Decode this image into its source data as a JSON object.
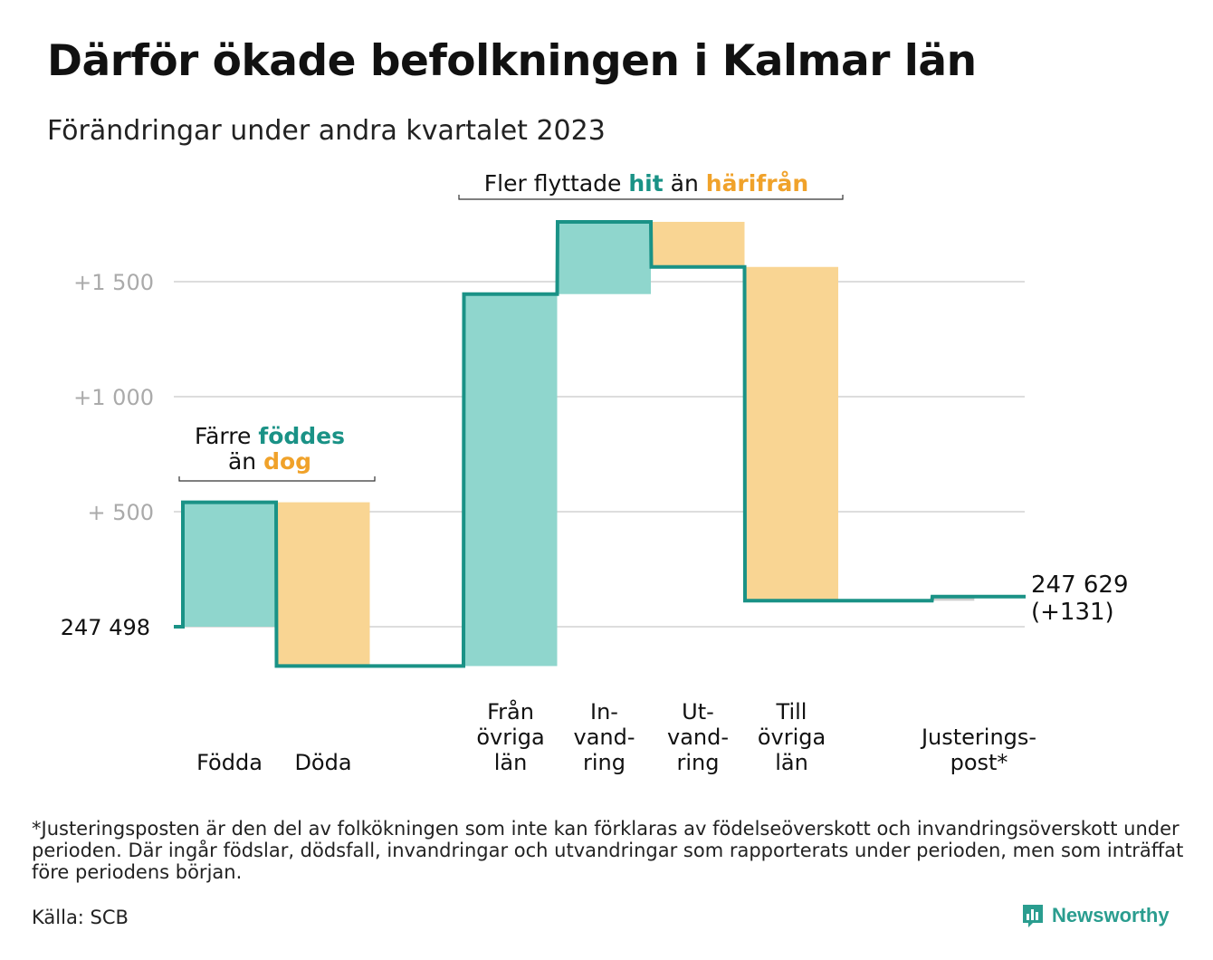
{
  "title": "Därför ökade befolkningen i Kalmar län",
  "subtitle": "Förändringar under andra kvartalet 2023",
  "colors": {
    "increase_fill": "#8fd6cd",
    "decrease_fill": "#f9d593",
    "line": "#1a9286",
    "teal_text": "#1a9286",
    "orange_text": "#f0a22a",
    "grid": "#dddddd",
    "tick_label": "#aaaaaa"
  },
  "chart_data": {
    "type": "waterfall",
    "baseline": 247498,
    "baseline_label": "247  498",
    "end_value": 247629,
    "end_label_line1": "247 629",
    "end_label_line2": "(+131)",
    "ylim": [
      -160,
      1800
    ],
    "grid_values": [
      500,
      1000,
      1500
    ],
    "tick_labels": [
      "+  500",
      "+1  000",
      "+1  500"
    ],
    "categories": [
      {
        "label_lines": [
          "Födda"
        ],
        "change": 541,
        "kind": "increase"
      },
      {
        "label_lines": [
          "Döda"
        ],
        "change": -712,
        "kind": "decrease"
      },
      {
        "label_lines": [],
        "change": 0,
        "kind": "gap"
      },
      {
        "label_lines": [
          "Från",
          "övriga",
          "län"
        ],
        "change": 1617,
        "kind": "increase"
      },
      {
        "label_lines": [
          "In-",
          "vand-",
          "ring"
        ],
        "change": 314,
        "kind": "increase"
      },
      {
        "label_lines": [
          "Ut-",
          "vand-",
          "ring"
        ],
        "change": -196,
        "kind": "decrease"
      },
      {
        "label_lines": [
          "Till",
          "övriga",
          "län"
        ],
        "change": -1451,
        "kind": "decrease"
      },
      {
        "label_lines": [],
        "change": 0,
        "kind": "gap"
      },
      {
        "label_lines": [
          "Justerings-",
          "post*"
        ],
        "change": 18,
        "kind": "adjustment"
      }
    ],
    "annotations": {
      "births_deaths": {
        "line1": "Färre ",
        "line1_em": "föddes",
        "line2": "än ",
        "line2_em": "dog"
      },
      "migration": {
        "part1": "Fler flyttade ",
        "em1": "hit",
        "part2": " än ",
        "em2": "härifrån"
      }
    }
  },
  "footnote": "*Justeringsposten är den del av folkökningen som inte kan förklaras av födelseöverskott och invandringsöverskott under perioden. Där ingår födslar, dödsfall, invandringar och utvandringar som rapporterats under perioden, men som inträffat före periodens början.",
  "source": "Källa: SCB",
  "logo": {
    "text": "Newsworthy",
    "icon": "bar-chart-speech-bubble-icon"
  }
}
